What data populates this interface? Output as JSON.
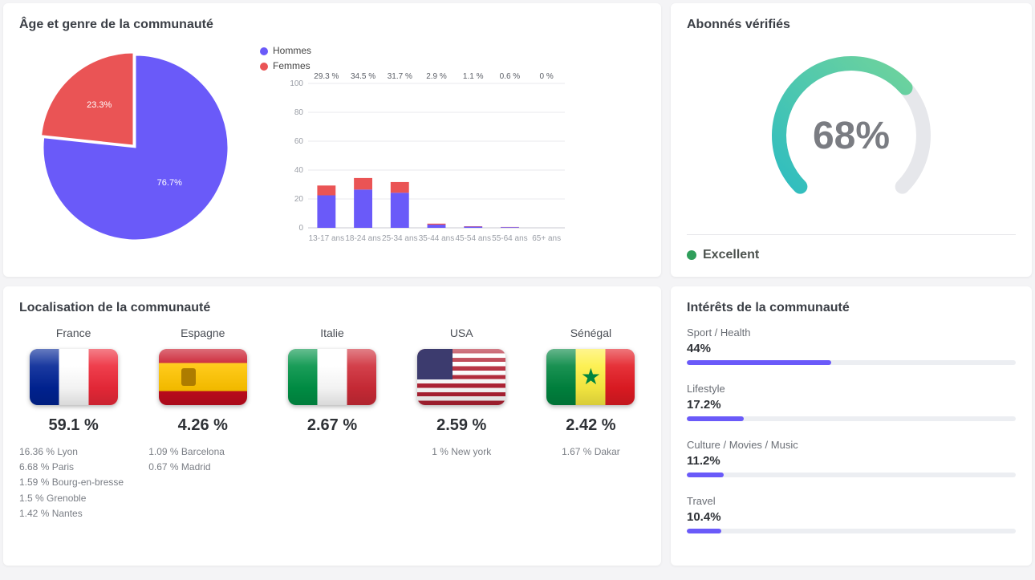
{
  "age_gender": {
    "title": "Âge et genre de la communauté",
    "pie": {
      "type": "pie",
      "slices": [
        {
          "label": "Hommes",
          "value": 76.7,
          "color": "#6a5af9",
          "text": "76.7%"
        },
        {
          "label": "Femmes",
          "value": 23.3,
          "color": "#ea5455",
          "text": "23.3%"
        }
      ],
      "label_fontsize": 11,
      "label_color": "#ffffff",
      "legend_labels": [
        "Hommes",
        "Femmes"
      ],
      "legend_colors": [
        "#6a5af9",
        "#ea5455"
      ],
      "legend_fontsize": 12
    },
    "bars": {
      "type": "stacked_bar",
      "categories": [
        "13-17 ans",
        "18-24 ans",
        "25-34 ans",
        "35-44 ans",
        "45-54 ans",
        "55-64 ans",
        "65+ ans"
      ],
      "top_labels": [
        "29.3 %",
        "34.5 %",
        "31.7 %",
        "2.9 %",
        "1.1 %",
        "0.6 %",
        "0 %"
      ],
      "series": [
        {
          "name": "Hommes",
          "color": "#6a5af9",
          "values": [
            22.5,
            26.5,
            24.3,
            2.2,
            0.85,
            0.46,
            0
          ]
        },
        {
          "name": "Femmes",
          "color": "#ea5455",
          "values": [
            6.8,
            8.0,
            7.4,
            0.7,
            0.25,
            0.14,
            0
          ]
        }
      ],
      "ylim": [
        0,
        100
      ],
      "yticks": [
        0,
        20,
        40,
        60,
        80,
        100
      ],
      "axis_fontsize": 10,
      "axis_color": "#9a9ea6",
      "grid_color": "#e8e8ec",
      "bar_width": 0.5
    }
  },
  "verified": {
    "title": "Abonnés vérifiés",
    "gauge": {
      "type": "gauge",
      "percent": 68,
      "text": "68%",
      "track_color": "#e6e7eb",
      "value_color_start": "#2fbdc0",
      "value_color_end": "#6fd39c",
      "stroke_width": 18,
      "text_color": "#7a7c82",
      "text_fontsize": 48
    },
    "status": {
      "label": "Excellent",
      "dot_color": "#2f9e5b"
    }
  },
  "location": {
    "title": "Localisation de la communauté",
    "countries": [
      {
        "name": "France",
        "percent": "59.1 %",
        "flag": {
          "type": "tricolor-v",
          "colors": [
            "#002395",
            "#ffffff",
            "#ed2939"
          ]
        },
        "cities": [
          "16.36 % Lyon",
          "6.68 % Paris",
          "1.59 % Bourg-en-bresse",
          "1.5 % Grenoble",
          "1.42 % Nantes"
        ]
      },
      {
        "name": "Espagne",
        "percent": "4.26 %",
        "flag": {
          "type": "tricolor-h-spain",
          "colors": [
            "#c60b1e",
            "#ffc400",
            "#c60b1e"
          ],
          "emblem_color": "#ad7c00"
        },
        "cities": [
          "1.09 % Barcelona",
          "0.67 % Madrid"
        ]
      },
      {
        "name": "Italie",
        "percent": "2.67 %",
        "flag": {
          "type": "tricolor-v",
          "colors": [
            "#009246",
            "#ffffff",
            "#ce2b37"
          ]
        },
        "cities": []
      },
      {
        "name": "USA",
        "percent": "2.59 %",
        "flag": {
          "type": "usa",
          "red": "#b22234",
          "white": "#ffffff",
          "blue": "#3c3b6e"
        },
        "cities": [
          "1 % New york"
        ]
      },
      {
        "name": "Sénégal",
        "percent": "2.42 %",
        "flag": {
          "type": "tricolor-v-star",
          "colors": [
            "#00853f",
            "#fdef42",
            "#e31b23"
          ],
          "star_color": "#00853f"
        },
        "cities": [
          "1.67 % Dakar"
        ]
      }
    ]
  },
  "interests": {
    "title": "Intérêts de la communauté",
    "bar_color": "#6a5af9",
    "track_color": "#eceef2",
    "items": [
      {
        "label": "Sport / Health",
        "percent": 44,
        "text": "44%"
      },
      {
        "label": "Lifestyle",
        "percent": 17.2,
        "text": "17.2%"
      },
      {
        "label": "Culture / Movies / Music",
        "percent": 11.2,
        "text": "11.2%"
      },
      {
        "label": "Travel",
        "percent": 10.4,
        "text": "10.4%"
      }
    ]
  }
}
